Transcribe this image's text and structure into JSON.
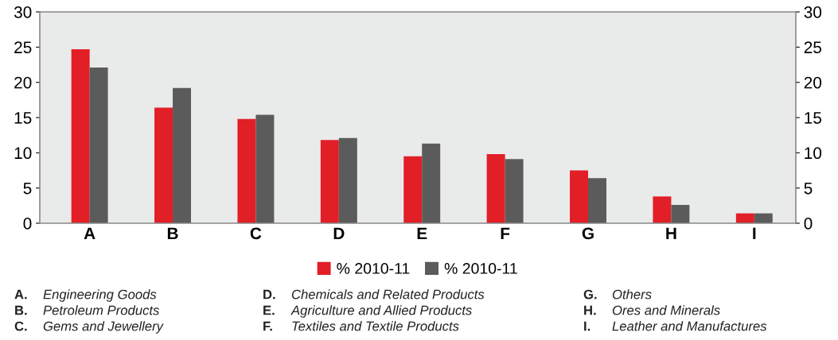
{
  "chart_data": {
    "type": "bar",
    "categories": [
      "A",
      "B",
      "C",
      "D",
      "E",
      "F",
      "G",
      "H",
      "I"
    ],
    "series": [
      {
        "name": "% 2010-11",
        "color": "#e21e26",
        "values": [
          24.7,
          16.4,
          14.8,
          11.8,
          9.5,
          9.8,
          7.5,
          3.8,
          1.4
        ]
      },
      {
        "name": "% 2010-11",
        "color": "#5b5b5b",
        "values": [
          22.1,
          19.2,
          15.4,
          12.1,
          11.3,
          9.1,
          6.4,
          2.6,
          1.4
        ]
      }
    ],
    "ylim": [
      0,
      30
    ],
    "yticks": [
      0,
      5,
      10,
      15,
      20,
      25,
      30
    ],
    "y2lim": [
      0,
      30
    ],
    "y2ticks": [
      0,
      5,
      10,
      15,
      20,
      25,
      30
    ],
    "grid": false,
    "legend": "bottom",
    "annotations": [
      "A. Engineering Goods",
      "B. Petroleum Products",
      "C. Gems and Jewellery",
      "D. Chemicals and Related Products",
      "E. Agriculture and Allied Products",
      "F. Textiles and Textile Products",
      "G. Others",
      "H. Ores and Minerals",
      "I. Leather and Manufactures"
    ]
  }
}
